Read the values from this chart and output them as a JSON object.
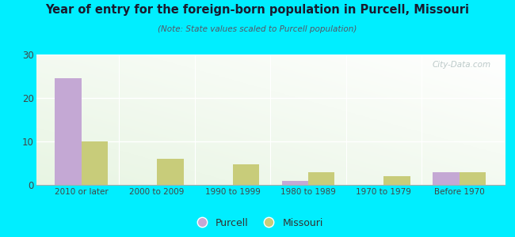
{
  "title": "Year of entry for the foreign-born population in Purcell, Missouri",
  "subtitle": "(Note: State values scaled to Purcell population)",
  "categories": [
    "2010 or later",
    "2000 to 2009",
    "1990 to 1999",
    "1980 to 1989",
    "1970 to 1979",
    "Before 1970"
  ],
  "purcell_values": [
    24.5,
    0,
    0,
    1,
    0,
    3
  ],
  "missouri_values": [
    10,
    6,
    4.8,
    3,
    2,
    3
  ],
  "purcell_color": "#c4a8d4",
  "missouri_color": "#c8cc7a",
  "background_color": "#00eeff",
  "plot_bg": "#e8f5e4",
  "ylim": [
    0,
    30
  ],
  "yticks": [
    0,
    10,
    20,
    30
  ],
  "bar_width": 0.35,
  "legend_purcell": "Purcell",
  "legend_missouri": "Missouri",
  "watermark": "City-Data.com"
}
